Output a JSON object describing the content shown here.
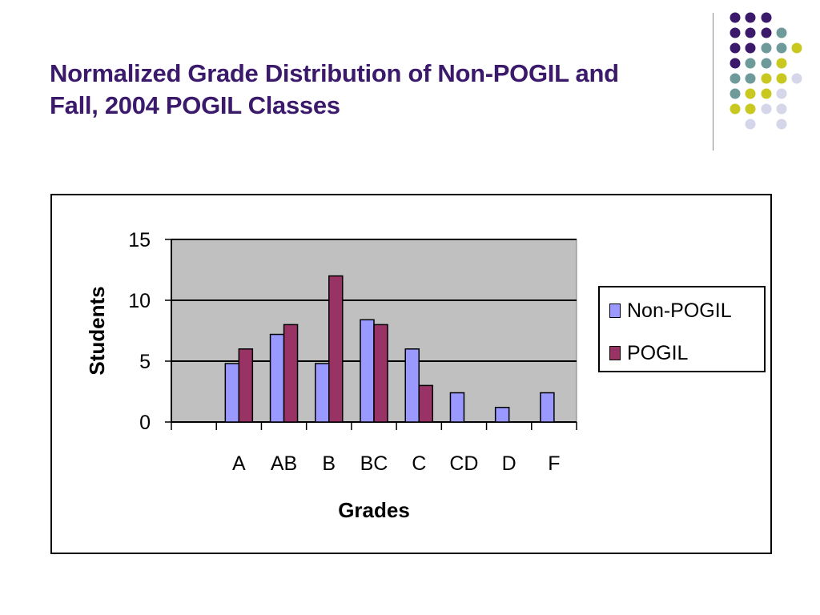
{
  "slide": {
    "title_line1": "Normalized Grade Distribution of Non-POGIL and",
    "title_line2": "Fall, 2004 POGIL Classes",
    "title_color": "#3b1a6b"
  },
  "decor": {
    "dot_colors": {
      "purple": "#3b1a6b",
      "teal": "#6e9a9a",
      "olive": "#c8c820",
      "lavender": "#d6d6ea"
    }
  },
  "chart_data": {
    "type": "bar",
    "categories": [
      "",
      "A",
      "AB",
      "B",
      "BC",
      "C",
      "CD",
      "D",
      "F"
    ],
    "series": [
      {
        "name": "Non-POGIL",
        "color": "#9999ff",
        "values": [
          0,
          4.8,
          7.2,
          4.8,
          8.4,
          6.0,
          2.4,
          1.2,
          2.4
        ]
      },
      {
        "name": "POGIL",
        "color": "#993366",
        "values": [
          0,
          6.0,
          8.0,
          12.0,
          8.0,
          3.0,
          0,
          0,
          0
        ]
      }
    ],
    "title": "",
    "xlabel": "Grades",
    "ylabel": "Students",
    "ylim": [
      0,
      15
    ],
    "yticks": [
      0,
      5,
      10,
      15
    ],
    "grid": true,
    "plot_background": "#c0c0c0",
    "legend_position": "right"
  }
}
